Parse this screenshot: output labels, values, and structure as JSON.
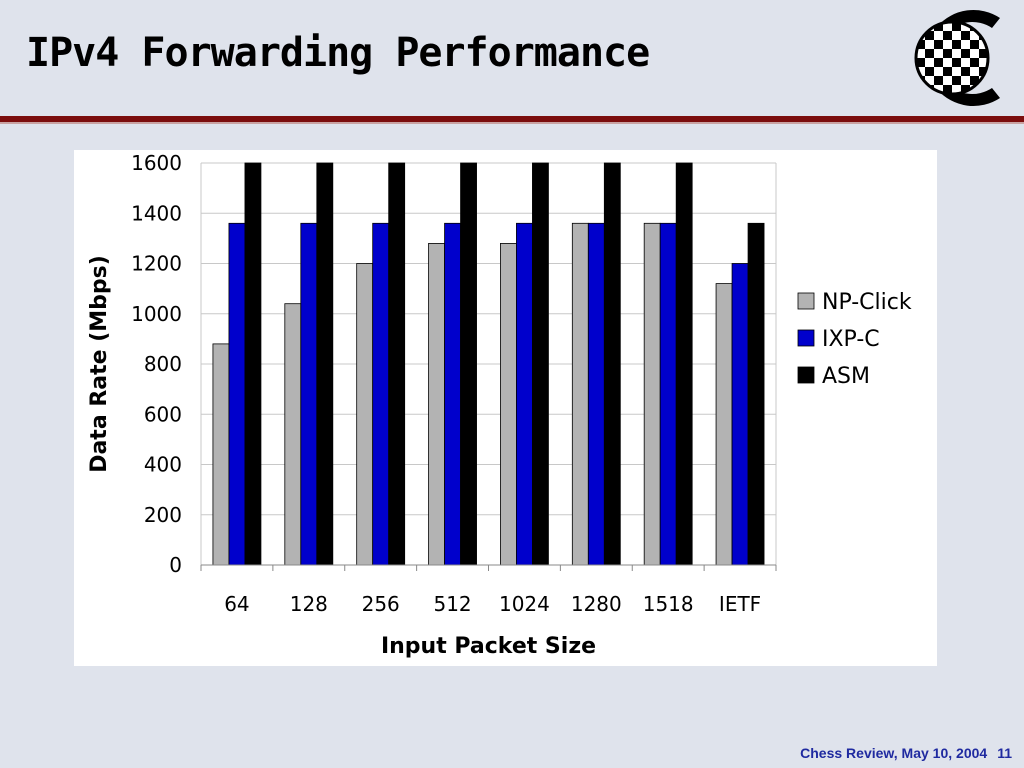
{
  "slide": {
    "title": "IPv4 Forwarding Performance",
    "footer_text": "Chess Review, May 10, 2004",
    "page_number": "11"
  },
  "colors": {
    "background": "#dfe3ec",
    "rule": "#7b0d0d",
    "footer": "#1f2aa0"
  },
  "chart_data": {
    "type": "bar",
    "title": "",
    "xlabel": "Input Packet Size",
    "ylabel": "Data Rate (Mbps)",
    "categories": [
      "64",
      "128",
      "256",
      "512",
      "1024",
      "1280",
      "1518",
      "IETF"
    ],
    "series": [
      {
        "name": "NP-Click",
        "color": "#b3b3b3",
        "values": [
          880,
          1040,
          1200,
          1280,
          1280,
          1360,
          1360,
          1120
        ]
      },
      {
        "name": "IXP-C",
        "color": "#0000cc",
        "values": [
          1360,
          1360,
          1360,
          1360,
          1360,
          1360,
          1360,
          1200
        ]
      },
      {
        "name": "ASM",
        "color": "#000000",
        "values": [
          1600,
          1600,
          1600,
          1600,
          1600,
          1600,
          1600,
          1360
        ]
      }
    ],
    "ylim": [
      0,
      1600
    ],
    "yticks": [
      0,
      200,
      400,
      600,
      800,
      1000,
      1200,
      1400,
      1600
    ],
    "grid": true,
    "legend_position": "right"
  }
}
